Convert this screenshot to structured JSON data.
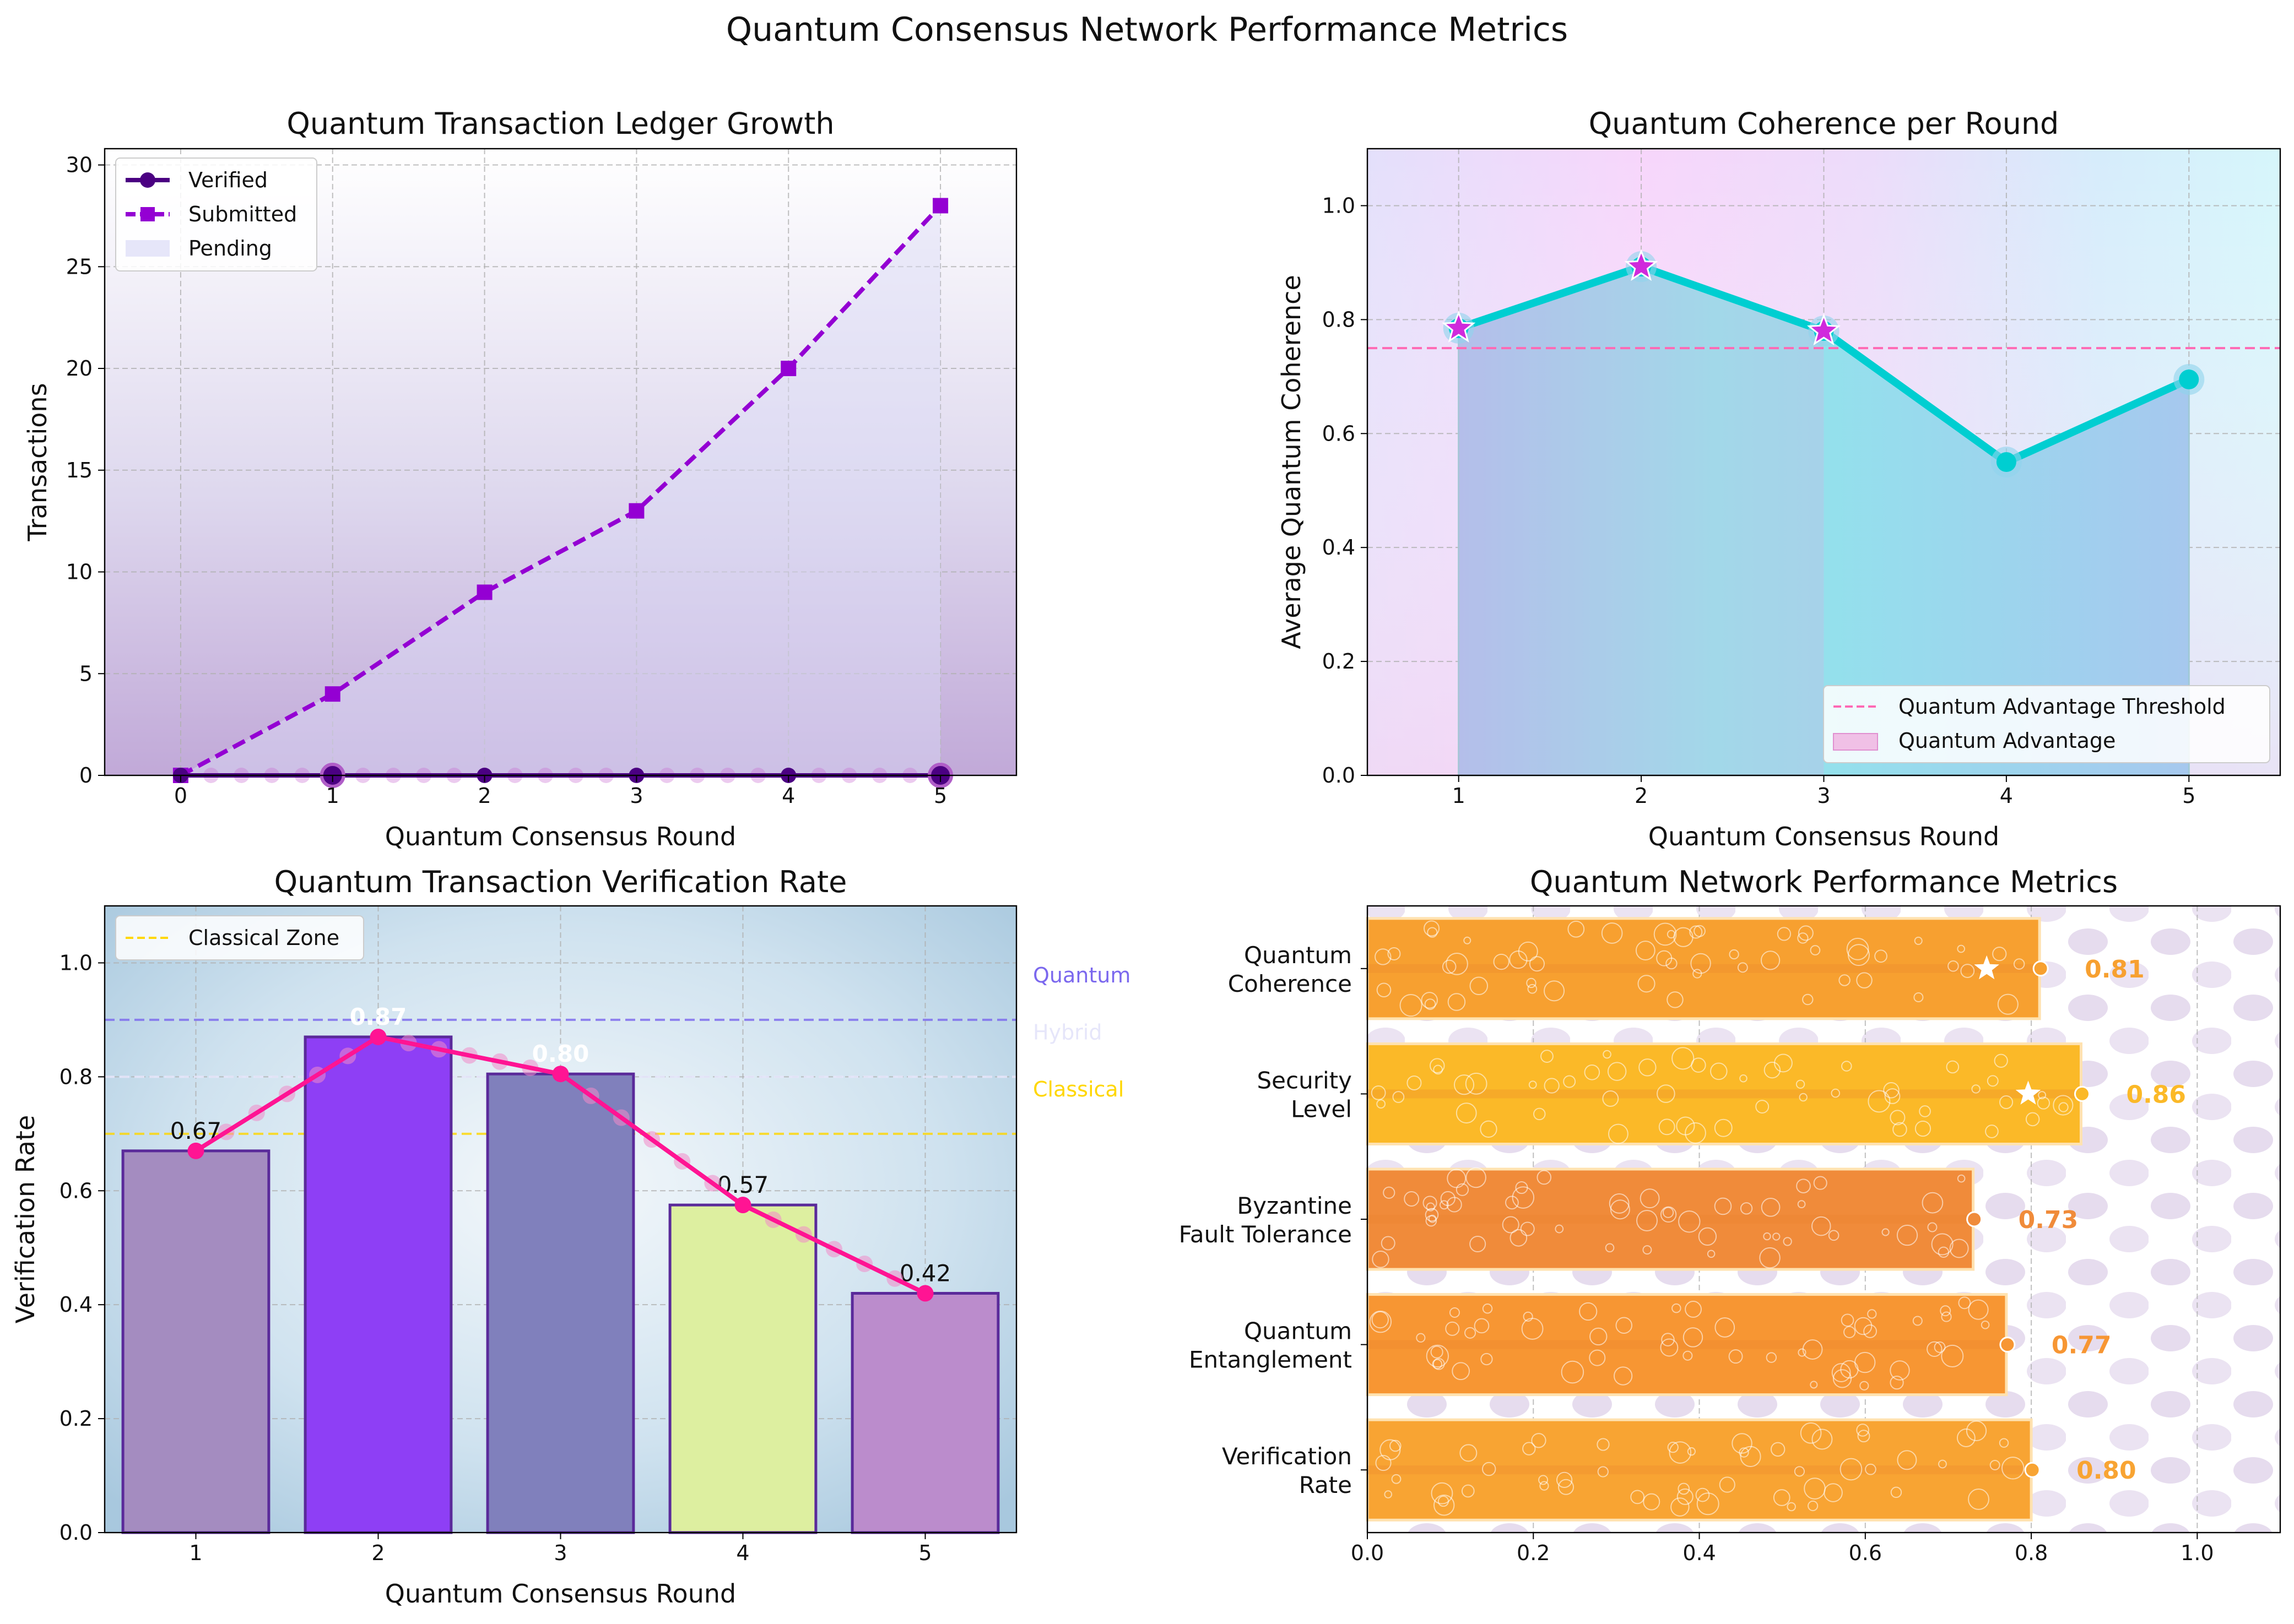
{
  "suptitle": "Quantum Consensus Network Performance Metrics",
  "colors": {
    "verified": "#4B0082",
    "submitted": "#9400D3",
    "coherence_line": "#00CED1",
    "threshold": "#FF69B4",
    "trend": "#FF1493",
    "metric_bar": "#F7A030"
  },
  "chart_data": [
    {
      "id": "ledger",
      "type": "line",
      "title": "Quantum Transaction Ledger Growth",
      "xlabel": "Quantum Consensus Round",
      "ylabel": "Transactions",
      "x": [
        0,
        1,
        2,
        3,
        4,
        5
      ],
      "xlim": [
        -0.5,
        5.5
      ],
      "ylim": [
        0,
        30.8
      ],
      "xticks": [
        0,
        1,
        2,
        3,
        4,
        5
      ],
      "yticks": [
        0,
        5,
        10,
        15,
        20,
        25,
        30
      ],
      "series": [
        {
          "name": "Verified",
          "values": [
            0,
            0,
            0,
            0,
            0,
            0
          ],
          "style": "solid",
          "marker": "circle"
        },
        {
          "name": "Submitted",
          "values": [
            0,
            4,
            9,
            13,
            20,
            28
          ],
          "style": "dashed",
          "marker": "square"
        }
      ],
      "fill_legend": "Pending",
      "legend": "upper-left",
      "grid": true
    },
    {
      "id": "coherence",
      "type": "line",
      "title": "Quantum Coherence per Round",
      "xlabel": "Quantum Consensus Round",
      "ylabel": "Average Quantum Coherence",
      "x": [
        1,
        2,
        3,
        4,
        5
      ],
      "values": [
        0.785,
        0.893,
        0.78,
        0.55,
        0.695
      ],
      "advantage_rounds": [
        1,
        2,
        3
      ],
      "threshold": 0.75,
      "threshold_label": "Quantum Advantage Threshold",
      "fill_label": "Quantum Advantage",
      "xlim": [
        0.5,
        5.5
      ],
      "ylim": [
        0,
        1.1
      ],
      "xticks": [
        1,
        2,
        3,
        4,
        5
      ],
      "yticks": [
        "0.0",
        "0.2",
        "0.4",
        "0.6",
        "0.8",
        "1.0"
      ],
      "legend": "lower-right",
      "grid": true
    },
    {
      "id": "verification",
      "type": "bar",
      "title": "Quantum Transaction Verification Rate",
      "xlabel": "Quantum Consensus Round",
      "ylabel": "Verification Rate",
      "categories": [
        "1",
        "2",
        "3",
        "4",
        "5"
      ],
      "values": [
        0.67,
        0.87,
        0.805,
        0.575,
        0.42
      ],
      "value_labels": [
        "0.67",
        "0.87",
        "0.80",
        "0.57",
        "0.42"
      ],
      "bar_colors": [
        "#A48CC0",
        "#8E3FF5",
        "#8080BC",
        "#DDEFA0",
        "#BB8CCC"
      ],
      "zones": [
        {
          "name": "Quantum",
          "value": 0.9,
          "color": "#7B68EE"
        },
        {
          "name": "Hybrid",
          "value": 0.8,
          "color": "#E6E6FA"
        },
        {
          "name": "Classical",
          "value": 0.7,
          "color": "#FFD700"
        }
      ],
      "legend_entry": "Classical Zone",
      "xlim": [
        0.5,
        5.5
      ],
      "ylim": [
        0,
        1.1
      ],
      "yticks": [
        "0.0",
        "0.2",
        "0.4",
        "0.6",
        "0.8",
        "1.0"
      ],
      "legend": "upper-left",
      "grid": true
    },
    {
      "id": "metrics",
      "type": "bar",
      "orientation": "horizontal",
      "title": "Quantum Network Performance Metrics",
      "categories": [
        [
          "Quantum",
          "Coherence"
        ],
        [
          "Security",
          "Level"
        ],
        [
          "Byzantine",
          "Fault Tolerance"
        ],
        [
          "Quantum",
          "Entanglement"
        ],
        [
          "Verification",
          "Rate"
        ]
      ],
      "values": [
        0.81,
        0.86,
        0.73,
        0.77,
        0.8
      ],
      "value_labels": [
        "0.81",
        "0.86",
        "0.73",
        "0.77",
        "0.80"
      ],
      "starred": [
        true,
        true,
        false,
        false,
        false
      ],
      "bar_colors": [
        "#F7A030",
        "#FBB928",
        "#F08B3A",
        "#F79633",
        "#F8A433"
      ],
      "xlim": [
        0,
        1.1
      ],
      "xticks": [
        "0.0",
        "0.2",
        "0.4",
        "0.6",
        "0.8",
        "1.0"
      ],
      "grid": true
    }
  ]
}
